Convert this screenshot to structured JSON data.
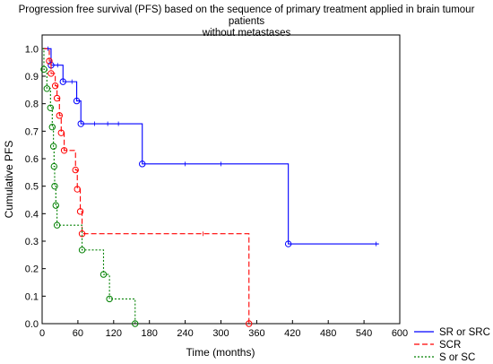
{
  "chart_data": {
    "type": "line",
    "step": true,
    "title_line1": "Progression free survival (PFS) based on the sequence of primary treatment applied in brain tumour patients",
    "title_line2": "without metastases",
    "xlabel": "Time (months)",
    "ylabel": "Cumulative PFS",
    "xlim": [
      0,
      600
    ],
    "ylim": [
      0,
      1.05
    ],
    "x_ticks": [
      0,
      60,
      120,
      180,
      240,
      300,
      360,
      420,
      480,
      540,
      600
    ],
    "y_ticks": [
      0.0,
      0.1,
      0.2,
      0.3,
      0.4,
      0.5,
      0.6,
      0.7,
      0.8,
      0.9,
      1.0
    ],
    "legend_position": "bottom-right, outside plot",
    "series": [
      {
        "name": "SR or SRC",
        "color": "#0000ff",
        "line_style": "solid",
        "steps": [
          [
            0,
            1.0
          ],
          [
            15,
            0.94
          ],
          [
            35,
            0.88
          ],
          [
            58,
            0.81
          ],
          [
            65,
            0.727
          ],
          [
            168,
            0.581
          ],
          [
            413,
            0.29
          ],
          [
            565,
            0.29
          ]
        ],
        "event_markers": [
          [
            15,
            0.94
          ],
          [
            35,
            0.88
          ],
          [
            58,
            0.81
          ],
          [
            65,
            0.727
          ],
          [
            168,
            0.581
          ],
          [
            413,
            0.29
          ]
        ],
        "censor_marks": [
          [
            10,
            1.0
          ],
          [
            26,
            0.94
          ],
          [
            50,
            0.88
          ],
          [
            88,
            0.727
          ],
          [
            110,
            0.727
          ],
          [
            128,
            0.727
          ],
          [
            240,
            0.581
          ],
          [
            300,
            0.581
          ],
          [
            560,
            0.29
          ]
        ]
      },
      {
        "name": "SCR",
        "color": "#ff0000",
        "line_style": "dashed",
        "steps": [
          [
            0,
            1.0
          ],
          [
            12,
            0.955
          ],
          [
            15,
            0.91
          ],
          [
            22,
            0.865
          ],
          [
            25,
            0.82
          ],
          [
            29,
            0.757
          ],
          [
            32,
            0.694
          ],
          [
            37,
            0.63
          ],
          [
            56,
            0.559
          ],
          [
            59,
            0.489
          ],
          [
            64,
            0.408
          ],
          [
            67,
            0.327
          ],
          [
            347,
            0.0
          ]
        ],
        "event_markers": [
          [
            12,
            0.955
          ],
          [
            15,
            0.91
          ],
          [
            22,
            0.865
          ],
          [
            25,
            0.82
          ],
          [
            29,
            0.757
          ],
          [
            32,
            0.694
          ],
          [
            37,
            0.63
          ],
          [
            56,
            0.559
          ],
          [
            59,
            0.489
          ],
          [
            64,
            0.408
          ],
          [
            67,
            0.327
          ],
          [
            347,
            0.0
          ]
        ],
        "censor_marks": [
          [
            270,
            0.327
          ]
        ]
      },
      {
        "name": "S or SC",
        "color": "#008000",
        "line_style": "dotted",
        "steps": [
          [
            0,
            1.0
          ],
          [
            3,
            0.925
          ],
          [
            8,
            0.855
          ],
          [
            14,
            0.785
          ],
          [
            17,
            0.715
          ],
          [
            19,
            0.645
          ],
          [
            20,
            0.572
          ],
          [
            21,
            0.5
          ],
          [
            23,
            0.43
          ],
          [
            25,
            0.358
          ],
          [
            67,
            0.268
          ],
          [
            103,
            0.179
          ],
          [
            113,
            0.09
          ],
          [
            156,
            0.0
          ]
        ],
        "event_markers": [
          [
            3,
            0.925
          ],
          [
            8,
            0.855
          ],
          [
            14,
            0.785
          ],
          [
            17,
            0.715
          ],
          [
            19,
            0.645
          ],
          [
            20,
            0.572
          ],
          [
            21,
            0.5
          ],
          [
            23,
            0.43
          ],
          [
            25,
            0.358
          ],
          [
            67,
            0.268
          ],
          [
            103,
            0.179
          ],
          [
            113,
            0.09
          ],
          [
            156,
            0.0
          ]
        ],
        "censor_marks": []
      }
    ]
  }
}
